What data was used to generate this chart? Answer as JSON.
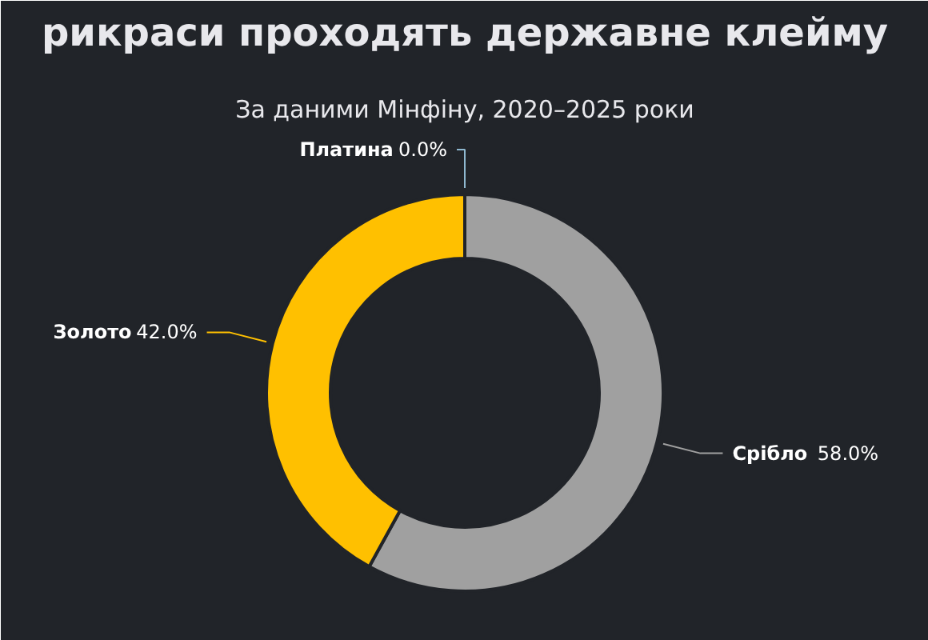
{
  "chart_data": {
    "type": "donut",
    "title": "рикраси проходять державне клейму",
    "subtitle": "За даними Мінфіну, 2020–2025 роки",
    "categories": [
      "Срібло",
      "Золото",
      "Платина"
    ],
    "values": [
      58.0,
      42.0,
      0.0
    ],
    "colors": [
      "#a0a0a0",
      "#ffc000",
      "#8fb8d0"
    ],
    "value_labels": [
      "58.0%",
      "42.0%",
      "0.0%"
    ]
  }
}
